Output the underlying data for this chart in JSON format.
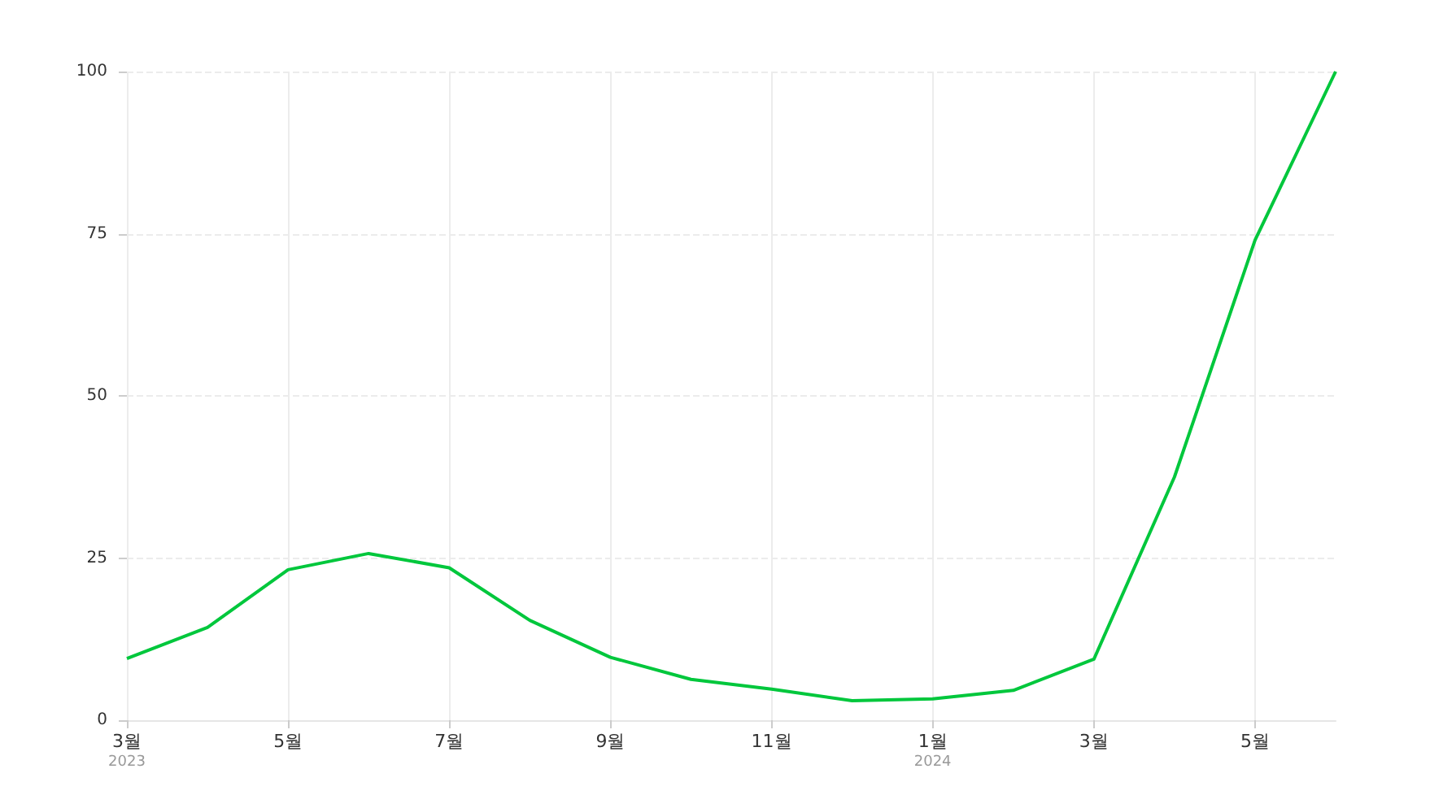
{
  "chart_data": {
    "type": "line",
    "categories": [
      "3월\n2023",
      null,
      "5월",
      null,
      "7월",
      null,
      "9월",
      null,
      "11월",
      null,
      "1월\n2024",
      null,
      "3월",
      null,
      "5월",
      null
    ],
    "series": [
      {
        "color": "#00c73c",
        "values": [
          9.5,
          14.3,
          23.2,
          25.7,
          23.5,
          15.4,
          9.7,
          6.3,
          4.8,
          3.0,
          3.3,
          4.6,
          9.4,
          37.5,
          74,
          100
        ]
      }
    ],
    "ylim": [
      0,
      100
    ],
    "yticks": [
      0,
      25,
      50,
      75,
      100
    ],
    "grid": true,
    "marker": "none",
    "line_style": "solid"
  }
}
